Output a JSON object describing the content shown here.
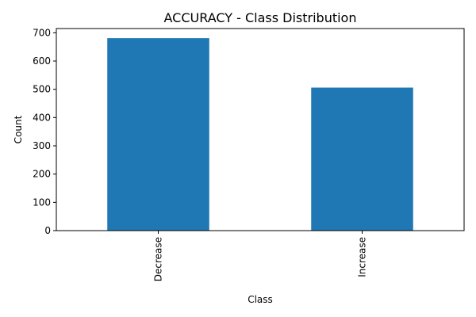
{
  "chart_data": {
    "type": "bar",
    "title": "ACCURACY - Class Distribution",
    "xlabel": "Class",
    "ylabel": "Count",
    "categories": [
      "Decrease",
      "Increase"
    ],
    "values": [
      681,
      506
    ],
    "ylim": [
      0,
      715
    ],
    "yticks": [
      0,
      100,
      200,
      300,
      400,
      500,
      600,
      700
    ],
    "bar_color": "#1f77b4",
    "grid": false,
    "legend": "none"
  }
}
